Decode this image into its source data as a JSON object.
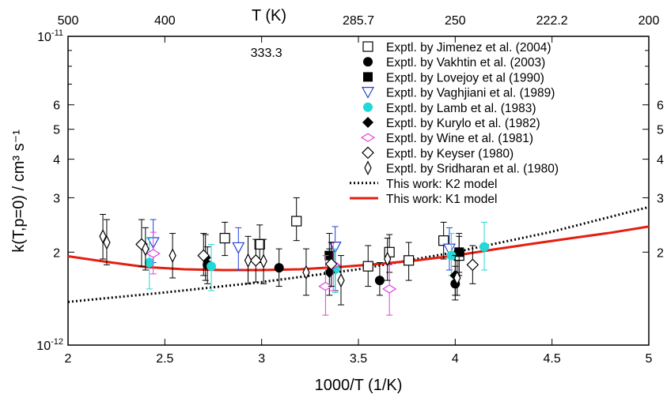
{
  "chart_data": {
    "type": "scatter",
    "xlabel": "1000/T (1/K)",
    "ylabel": "k(T,p=0) / cm³ s⁻¹",
    "top_axis_label": "T (K)",
    "x_range": [
      2,
      5
    ],
    "y_range": [
      1e-12,
      1e-11
    ],
    "y_scale": "log",
    "x_ticks": [
      {
        "value": 2,
        "label": "2"
      },
      {
        "value": 2.5,
        "label": "2.5"
      },
      {
        "value": 3,
        "label": "3"
      },
      {
        "value": 3.5,
        "label": "3.5"
      },
      {
        "value": 4,
        "label": "4"
      },
      {
        "value": 4.5,
        "label": "4.5"
      },
      {
        "value": 5,
        "label": "5"
      }
    ],
    "top_ticks": [
      {
        "value": 2.0,
        "label": "500"
      },
      {
        "value": 2.5,
        "label": "400"
      },
      {
        "value": 3.0,
        "label": "333.3"
      },
      {
        "value": 3.5,
        "label": "285.7"
      },
      {
        "value": 4.0,
        "label": "250"
      },
      {
        "value": 4.5,
        "label": "222.2"
      },
      {
        "value": 5.0,
        "label": "200"
      }
    ],
    "y_ticks_left": [
      {
        "value": 1e-11,
        "label": "10",
        "exp": "-11"
      },
      {
        "value": 6e-12,
        "label": "6"
      },
      {
        "value": 5e-12,
        "label": "5"
      },
      {
        "value": 4e-12,
        "label": "4"
      },
      {
        "value": 3e-12,
        "label": "3"
      },
      {
        "value": 2e-12,
        "label": "2"
      },
      {
        "value": 1e-12,
        "label": "10",
        "exp": "-12"
      }
    ],
    "y_ticks_right": [
      {
        "value": 6e-12,
        "label": "6"
      },
      {
        "value": 5e-12,
        "label": "5"
      },
      {
        "value": 4e-12,
        "label": "4"
      },
      {
        "value": 3e-12,
        "label": "3"
      },
      {
        "value": 2e-12,
        "label": "2"
      }
    ],
    "series": [
      {
        "name": "Exptl. by Jimenez et al. (2004)",
        "marker": "square-open",
        "color": "#000000",
        "points": [
          [
            2.81,
            2.22,
            1.95,
            2.5
          ],
          [
            2.99,
            2.12,
            1.85,
            2.45
          ],
          [
            3.18,
            2.52,
            2.18,
            3.0
          ],
          [
            3.55,
            1.8,
            1.55,
            2.1
          ],
          [
            3.66,
            2.0,
            1.72,
            2.28
          ],
          [
            3.76,
            1.88,
            1.62,
            2.15
          ],
          [
            3.94,
            2.18,
            1.9,
            2.5
          ],
          [
            4.02,
            1.95,
            1.68,
            2.25
          ]
        ]
      },
      {
        "name": "Exptl. by Vakhtin et al. (2003)",
        "marker": "circle-filled",
        "color": "#000000",
        "points": [
          [
            2.72,
            1.82,
            1.58,
            2.08
          ],
          [
            3.09,
            1.78,
            1.55,
            2.05
          ],
          [
            3.38,
            1.78,
            1.5,
            2.05
          ],
          [
            3.61,
            1.62,
            1.45,
            1.85
          ],
          [
            4.0,
            1.58,
            1.4,
            1.8
          ]
        ]
      },
      {
        "name": "Exptl. by Lovejoy et al (1990)",
        "marker": "square-filled",
        "color": "#000000",
        "points": [
          [
            3.35,
            1.95,
            1.7,
            2.3
          ],
          [
            4.02,
            2.0,
            1.72,
            2.3
          ]
        ]
      },
      {
        "name": "Exptl. by Vaghjiani et al. (1989)",
        "marker": "triangle-down-open",
        "color": "#2343d6",
        "points": [
          [
            2.44,
            2.15,
            1.85,
            2.55
          ],
          [
            2.88,
            2.07,
            1.75,
            2.4
          ],
          [
            3.38,
            2.08,
            1.78,
            2.42
          ],
          [
            3.97,
            2.05,
            1.75,
            2.4
          ]
        ]
      },
      {
        "name": "Exptl. by Lamb et al. (1983)",
        "marker": "circle-filled",
        "color": "#22d8d8",
        "points": [
          [
            2.42,
            1.85,
            1.52,
            2.22
          ],
          [
            2.74,
            1.8,
            1.5,
            2.12
          ],
          [
            3.38,
            1.76,
            1.48,
            2.05
          ],
          [
            3.98,
            1.95,
            1.68,
            2.3
          ],
          [
            4.15,
            2.08,
            1.75,
            2.5
          ]
        ]
      },
      {
        "name": "Exptl. by Kurylo et al. (1982)",
        "marker": "diamond-filled",
        "color": "#000000",
        "points": [
          [
            2.71,
            1.92,
            1.62,
            2.28
          ],
          [
            3.35,
            1.72,
            1.45,
            2.05
          ],
          [
            4.0,
            1.68,
            1.45,
            1.95
          ]
        ]
      },
      {
        "name": "Exptl. by Wine et al. (1981)",
        "marker": "diamond-open-h",
        "color": "#e040e0",
        "points": [
          [
            2.44,
            1.98,
            1.7,
            2.32
          ],
          [
            3.33,
            1.55,
            1.25,
            1.95
          ],
          [
            3.37,
            1.82,
            1.5,
            2.15
          ],
          [
            3.66,
            1.52,
            1.25,
            1.82
          ]
        ]
      },
      {
        "name": "Exptl. by Keyser (1980)",
        "marker": "diamond-open",
        "color": "#000000",
        "points": [
          [
            2.38,
            2.12,
            1.8,
            2.55
          ],
          [
            2.7,
            1.95,
            1.68,
            2.3
          ],
          [
            2.97,
            1.88,
            1.6,
            2.2
          ],
          [
            3.36,
            1.83,
            1.55,
            2.15
          ],
          [
            4.09,
            1.82,
            1.58,
            2.1
          ]
        ]
      },
      {
        "name": "Exptl. by Sridharan et al. (1980)",
        "marker": "diamond-open-thin",
        "color": "#000000",
        "points": [
          [
            2.18,
            2.25,
            1.9,
            2.65
          ],
          [
            2.2,
            2.15,
            1.82,
            2.55
          ],
          [
            2.4,
            2.05,
            1.75,
            2.4
          ],
          [
            2.54,
            1.95,
            1.65,
            2.3
          ],
          [
            2.93,
            1.88,
            1.58,
            2.25
          ],
          [
            3.01,
            1.87,
            1.58,
            2.2
          ],
          [
            3.23,
            1.72,
            1.45,
            2.05
          ],
          [
            3.41,
            1.62,
            1.35,
            1.95
          ],
          [
            3.65,
            1.9,
            1.62,
            2.22
          ],
          [
            4.01,
            1.65,
            1.45,
            1.88
          ]
        ]
      },
      {
        "name": "This work: K2 model",
        "marker": "line-dotted",
        "color": "#000000",
        "curve": [
          [
            2.0,
            1.38
          ],
          [
            2.5,
            1.48
          ],
          [
            3.0,
            1.6
          ],
          [
            3.5,
            1.76
          ],
          [
            4.0,
            2.0
          ],
          [
            4.5,
            2.33
          ],
          [
            5.0,
            2.8
          ]
        ]
      },
      {
        "name": "This work: K1 model",
        "marker": "line-solid",
        "color": "#e41e10",
        "curve": [
          [
            2.0,
            1.94
          ],
          [
            2.2,
            1.86
          ],
          [
            2.4,
            1.79
          ],
          [
            2.6,
            1.76
          ],
          [
            2.8,
            1.75
          ],
          [
            3.0,
            1.75
          ],
          [
            3.2,
            1.76
          ],
          [
            3.4,
            1.79
          ],
          [
            3.6,
            1.83
          ],
          [
            3.8,
            1.88
          ],
          [
            4.0,
            1.95
          ],
          [
            4.2,
            2.04
          ],
          [
            4.4,
            2.13
          ],
          [
            4.6,
            2.22
          ],
          [
            4.8,
            2.31
          ],
          [
            5.0,
            2.42
          ]
        ]
      }
    ]
  }
}
